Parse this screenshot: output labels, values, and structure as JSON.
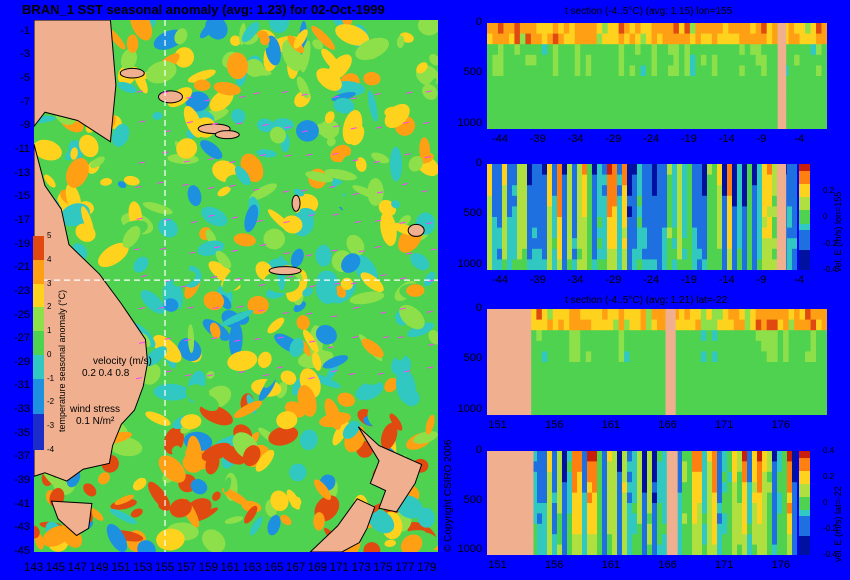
{
  "colors": {
    "background": "#0000ff",
    "land": "#f0b090",
    "sea_mid": "#4fd24f",
    "warm": "#ffd21e",
    "hot": "#c81e0a",
    "cold": "#2a8cd2",
    "grid": "#ffffff",
    "vectors": "#ff40ff"
  },
  "map": {
    "title": "BRAN_1  SST seasonal anomaly (avg: 1.23) for 02-Oct-1999",
    "y_ticks": [
      "-1",
      "-3",
      "-5",
      "-7",
      "-9",
      "-11",
      "-13",
      "-15",
      "-17",
      "-19",
      "-21",
      "-23",
      "-25",
      "-27",
      "-29",
      "-31",
      "-33",
      "-35",
      "-37",
      "-39",
      "-41",
      "-43",
      "-45"
    ],
    "x_ticks": [
      "143",
      "145",
      "147",
      "149",
      "151",
      "153",
      "155",
      "157",
      "159",
      "161",
      "163",
      "165",
      "167",
      "169",
      "171",
      "173",
      "175",
      "177",
      "179"
    ],
    "colorbar_ticks": [
      "5",
      "4",
      "3",
      "2",
      "1",
      "0",
      "-1",
      "-2",
      "-3",
      "-4"
    ],
    "colorbar_label": "temperature seasonal anomaly (°C)",
    "velocity_label": "velocity (m/s)",
    "velocity_scale": "0.2 0.4 0.8",
    "wind_label": "wind stress",
    "wind_scale": "0.1 N/m²",
    "copyright": "© Copyright CSIRO 2006"
  },
  "panels": [
    {
      "title": "t section (-4..5°C) (avg: 1.15) lon=155",
      "x_ticks": [
        "-44",
        "-39",
        "-34",
        "-29",
        "-24",
        "-19",
        "-14",
        "-9",
        "-4"
      ],
      "y_ticks": [
        "0",
        "500",
        "1000"
      ]
    },
    {
      "title": "",
      "x_ticks": [
        "-44",
        "-39",
        "-34",
        "-29",
        "-24",
        "-19",
        "-14",
        "-9",
        "-4"
      ],
      "y_ticks": [
        "0",
        "500",
        "1000"
      ],
      "cbar_label": "vel. E (m/s) lon=155",
      "cbar_ticks": [
        "",
        "0.2",
        "0",
        "-0.2",
        "-0.4"
      ]
    },
    {
      "title": "t section (-4..5°C) (avg: 1.21) lat=-22",
      "x_ticks": [
        "151",
        "156",
        "161",
        "166",
        "171",
        "176"
      ],
      "y_ticks": [
        "0",
        "500",
        "1000"
      ]
    },
    {
      "title": "",
      "x_ticks": [
        "151",
        "156",
        "161",
        "166",
        "171",
        "176"
      ],
      "y_ticks": [
        "0",
        "500",
        "1000"
      ],
      "cbar_label": "vel. E (m/s) lat=-22",
      "cbar_ticks": [
        "0.4",
        "0.2",
        "0",
        "-0.2",
        "-0.4"
      ]
    }
  ],
  "chart_data": [
    {
      "type": "heatmap",
      "title": "BRAN_1  SST seasonal anomaly (avg: 1.23) for 02-Oct-1999",
      "xlabel": "",
      "ylabel": "",
      "xlim": [
        143,
        180
      ],
      "ylim": [
        -45,
        0
      ],
      "colorbar_range": [
        -4,
        5
      ],
      "colorbar_label": "temperature seasonal anomaly (°C)",
      "mean": 1.23,
      "crosshair": {
        "lon": 155,
        "lat": -22
      }
    },
    {
      "type": "heatmap",
      "title": "t section (-4..5°C) (avg: 1.15) lon=155",
      "xlim": [
        -46,
        -1
      ],
      "ylim": [
        1050,
        0
      ],
      "value_range": [
        -4,
        5
      ],
      "mean": 1.15
    },
    {
      "type": "heatmap",
      "title": "",
      "xlim": [
        -46,
        -1
      ],
      "ylim": [
        1050,
        0
      ],
      "value_range": [
        -0.4,
        0.4
      ],
      "colorbar_label": "vel. E (m/s) lon=155"
    },
    {
      "type": "heatmap",
      "title": "t section (-4..5°C) (avg: 1.21) lat=-22",
      "xlim": [
        150,
        180
      ],
      "ylim": [
        1050,
        0
      ],
      "value_range": [
        -4,
        5
      ],
      "mean": 1.21
    },
    {
      "type": "heatmap",
      "title": "",
      "xlim": [
        150,
        180
      ],
      "ylim": [
        1050,
        0
      ],
      "value_range": [
        -0.4,
        0.4
      ],
      "colorbar_label": "vel. E (m/s) lat=-22"
    }
  ]
}
